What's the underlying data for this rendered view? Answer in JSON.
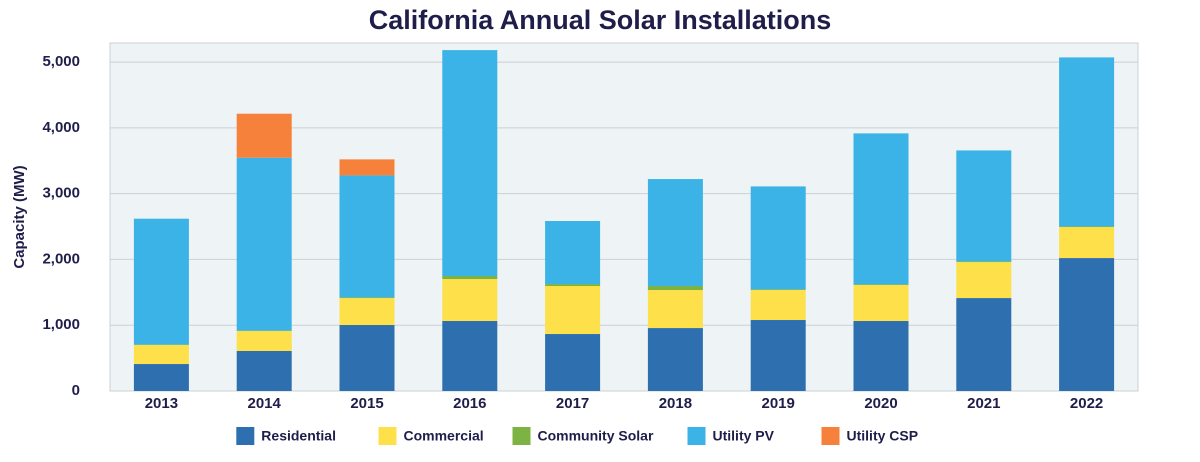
{
  "chart_data": {
    "type": "stacked-bar",
    "title": "California Annual Solar Installations",
    "y_label": "Capacity (MW)",
    "categories": [
      "2013",
      "2014",
      "2015",
      "2016",
      "2017",
      "2018",
      "2019",
      "2020",
      "2021",
      "2022"
    ],
    "series": [
      {
        "name": "Residential",
        "color": "#2e6fb0",
        "values": [
          410,
          608,
          1003,
          1064,
          866,
          957,
          1079,
          1064,
          1413,
          2021
        ]
      },
      {
        "name": "Commercial",
        "color": "#fde04a",
        "values": [
          290,
          304,
          410,
          638,
          730,
          578,
          456,
          547,
          547,
          471
        ]
      },
      {
        "name": "Community Solar",
        "color": "#7cb342",
        "values": [
          5,
          5,
          10,
          46,
          30,
          61,
          10,
          10,
          10,
          10
        ]
      },
      {
        "name": "Utility PV",
        "color": "#3bb3e6",
        "values": [
          1914,
          2629,
          1854,
          3434,
          958,
          1626,
          1565,
          2295,
          1687,
          2569
        ]
      },
      {
        "name": "Utility CSP",
        "color": "#f5813a",
        "values": [
          0,
          669,
          244,
          0,
          0,
          0,
          0,
          0,
          0,
          0
        ]
      }
    ],
    "ylim": [
      0,
      5290
    ],
    "yticks": [
      0,
      {
        "value": 1000,
        "label": "1,000"
      },
      {
        "value": 2000,
        "label": "2,000"
      },
      {
        "value": 3000,
        "label": "3,000"
      },
      {
        "value": 4000,
        "label": "4,000"
      },
      {
        "value": 5000,
        "label": "5,000"
      }
    ],
    "grid": true,
    "legend": "bottom"
  }
}
